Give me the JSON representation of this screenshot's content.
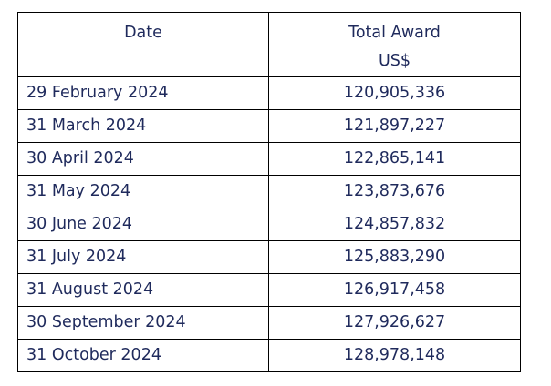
{
  "table": {
    "headers": {
      "date": "Date",
      "award_title": "Total Award",
      "award_unit": "US$"
    },
    "rows": [
      {
        "date": "29 February 2024",
        "award": "120,905,336"
      },
      {
        "date": "31 March 2024",
        "award": "121,897,227"
      },
      {
        "date": "30 April 2024",
        "award": "122,865,141"
      },
      {
        "date": "31 May 2024",
        "award": "123,873,676"
      },
      {
        "date": "30 June 2024",
        "award": "124,857,832"
      },
      {
        "date": "31 July 2024",
        "award": "125,883,290"
      },
      {
        "date": "31 August 2024",
        "award": "126,917,458"
      },
      {
        "date": "30 September 2024",
        "award": "127,926,627"
      },
      {
        "date": "31 October 2024",
        "award": "128,978,148"
      }
    ]
  },
  "colors": {
    "text": "#1f2a5c",
    "border": "#000000"
  }
}
